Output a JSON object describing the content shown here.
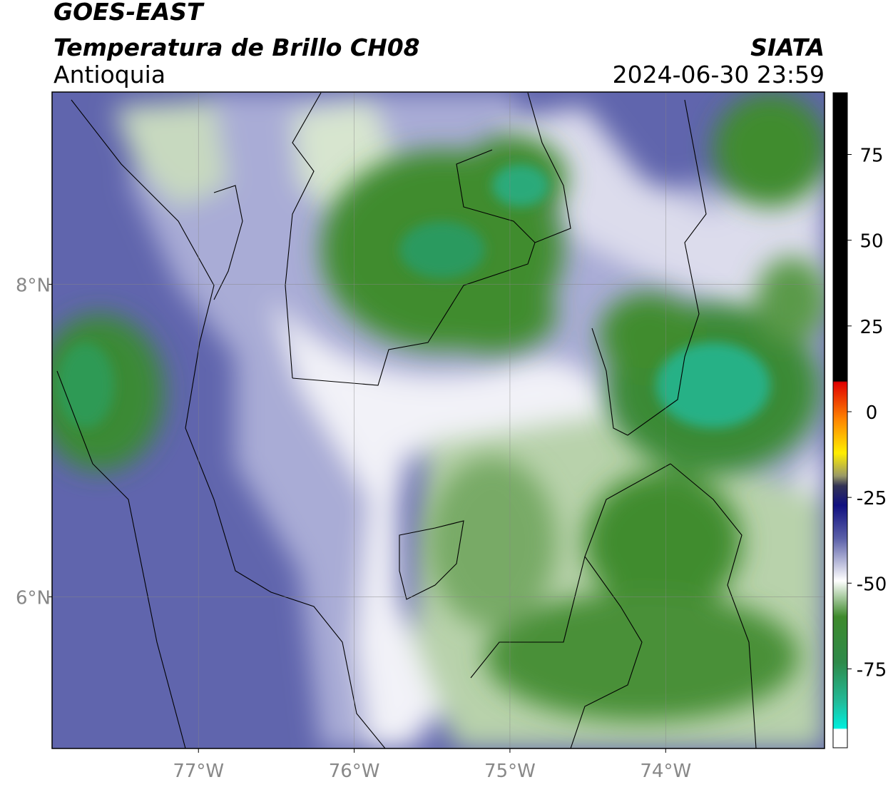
{
  "header": {
    "satellite": "GOES-EAST",
    "product": "Temperatura de Brillo CH08",
    "region": "Antioquia",
    "source": "SIATA",
    "datetime": "2024-06-30 23:59"
  },
  "map": {
    "xlim": [
      -77.94,
      -72.98
    ],
    "ylim": [
      5.03,
      9.23
    ],
    "xticks": [
      {
        "value": -77,
        "label": "77°W"
      },
      {
        "value": -76,
        "label": "76°W"
      },
      {
        "value": -75,
        "label": "75°W"
      },
      {
        "value": -74,
        "label": "74°W"
      }
    ],
    "yticks": [
      {
        "value": 8,
        "label": "8°N"
      },
      {
        "value": 6,
        "label": "6°N"
      }
    ],
    "grid": true
  },
  "colorbar": {
    "lim": [
      -98,
      93
    ],
    "ticks": [
      75,
      50,
      25,
      0,
      -25,
      -50,
      -75
    ]
  }
}
